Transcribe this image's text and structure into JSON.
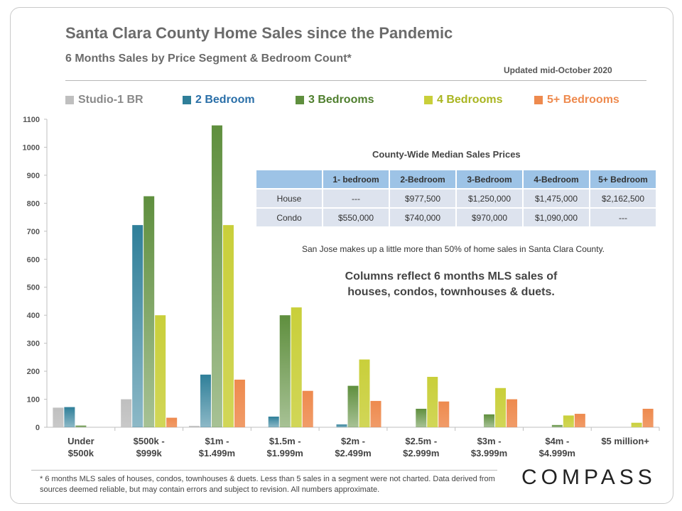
{
  "title": "Santa Clara County Home Sales since the Pandemic",
  "subtitle": "6 Months Sales by Price Segment & Bedroom Count*",
  "updated": "Updated mid-October 2020",
  "chart_data": {
    "type": "bar",
    "categories": [
      [
        "Under",
        "$500k"
      ],
      [
        "$500k -",
        "$999k"
      ],
      [
        "$1m -",
        "$1.499m"
      ],
      [
        "$1.5m -",
        "$1.999m"
      ],
      [
        "$2m -",
        "$2.499m"
      ],
      [
        "$2.5m -",
        "$2.999m"
      ],
      [
        "$3m -",
        "$3.999m"
      ],
      [
        "$4m -",
        "$4.999m"
      ],
      [
        "$5 million+",
        ""
      ]
    ],
    "series": [
      {
        "name": "Studio-1 BR",
        "color": "#bfbfbf",
        "values": [
          70,
          100,
          5,
          0,
          0,
          0,
          0,
          0,
          0
        ]
      },
      {
        "name": "2 Bedroom",
        "color": "#2f7f99",
        "values": [
          72,
          722,
          188,
          38,
          10,
          0,
          0,
          0,
          0
        ]
      },
      {
        "name": "3 Bedrooms",
        "color": "#5f8f3e",
        "values": [
          6,
          825,
          1078,
          400,
          148,
          66,
          46,
          8,
          0
        ]
      },
      {
        "name": "4 Bedrooms",
        "color": "#c9cf3a",
        "values": [
          0,
          400,
          722,
          428,
          242,
          180,
          140,
          42,
          16
        ]
      },
      {
        "name": "5+ Bedrooms",
        "color": "#ee8a4e",
        "values": [
          0,
          34,
          170,
          130,
          94,
          92,
          100,
          48,
          66
        ]
      }
    ],
    "legend_colors": [
      "#8a8a8a",
      "#2a6fa8",
      "#4f7f2e",
      "#a9b520",
      "#ee8a4e"
    ],
    "ylim": [
      0,
      1100
    ],
    "yticks": [
      0,
      100,
      200,
      300,
      400,
      500,
      600,
      700,
      800,
      900,
      1000,
      1100
    ],
    "grid": false,
    "legend_position": "top"
  },
  "price_table": {
    "title": "County-Wide  Median Sales Prices",
    "headers": [
      "",
      "1- bedroom",
      "2-Bedroom",
      "3-Bedroom",
      "4-Bedroom",
      "5+ Bedroom"
    ],
    "rows": [
      [
        "House",
        "---",
        "$977,500",
        "$1,250,000",
        "$1,475,000",
        "$2,162,500"
      ],
      [
        "Condo",
        "$550,000",
        "$740,000",
        "$970,000",
        "$1,090,000",
        "---"
      ]
    ]
  },
  "note_san_jose": "San Jose makes up a little more than 50% of home sales in Santa Clara County.",
  "note_columns": [
    "Columns reflect 6 months MLS sales of",
    "houses, condos, townhouses & duets."
  ],
  "footnote": "* 6 months MLS sales of houses, condos, townhouses & duets. Less than 5 sales in a segment were not charted. Data derived from sources deemed reliable, but may contain errors and subject to revision. All numbers approximate.",
  "logo": "COMPASS"
}
